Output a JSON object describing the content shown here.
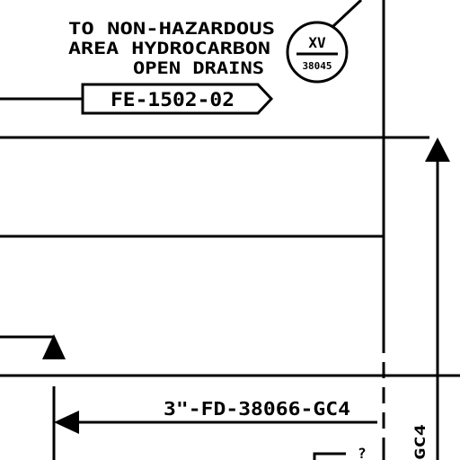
{
  "note": {
    "lines": [
      "TO NON-HAZARDOUS",
      "AREA HYDROCARBON",
      "OPEN DRAINS"
    ]
  },
  "offpage_connector": {
    "label": "FE-1502-02"
  },
  "valve_tag": {
    "type": "XV",
    "number": "38045"
  },
  "line_number": {
    "label": "3\"-FD-38066-GC4"
  },
  "vertical_fragment": {
    "label": "GC4"
  },
  "corner_fragment": {
    "label": "?"
  }
}
